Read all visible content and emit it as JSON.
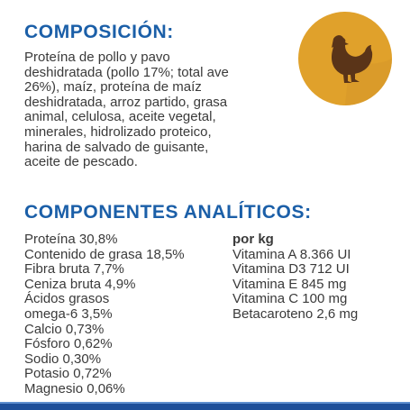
{
  "composition": {
    "title": "COMPOSICIÓN:",
    "lines": [
      "Proteína de pollo y pavo",
      "deshidratada (pollo 17%; total ave",
      "26%), maíz, proteína de maíz",
      "deshidratada, arroz partido, grasa",
      "animal, celulosa, aceite vegetal,",
      "minerales, hidrolizado proteico,",
      "harina de salvado de guisante,",
      "aceite de pescado."
    ]
  },
  "analytics": {
    "title": "COMPONENTES ANALÍTICOS:",
    "left": [
      "Proteína 30,8%",
      "Contenido de grasa 18,5%",
      "Fibra bruta 7,7%",
      "Ceniza bruta 4,9%",
      "Ácidos grasos",
      "omega-6 3,5%",
      "Calcio 0,73%",
      "Fósforo 0,62%",
      "Sodio 0,30%",
      "Potasio 0,72%",
      "Magnesio 0,06%"
    ],
    "right_header": "por kg",
    "right": [
      "Vitamina A 8.366 UI",
      "Vitamina D3 712 UI",
      "Vitamina E 845 mg",
      "Vitamina C 100 mg",
      "Betacaroteno 2,6 mg"
    ]
  }
}
